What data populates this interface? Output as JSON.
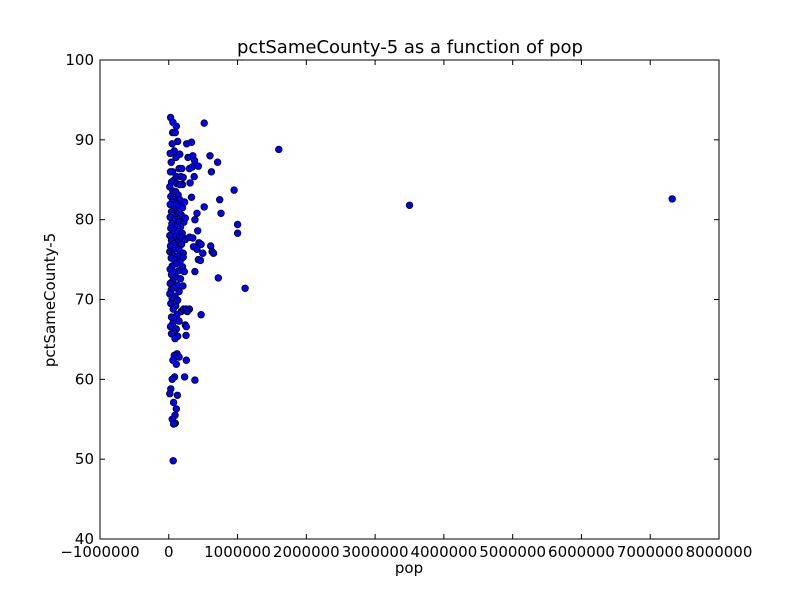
{
  "chart_data": {
    "type": "scatter",
    "title": "pctSameCounty-5 as a function of pop",
    "xlabel": "pop",
    "ylabel": "pctSameCounty-5",
    "xlim": [
      -1000000,
      8000000
    ],
    "ylim": [
      40,
      100
    ],
    "xticks": [
      "−1000000",
      "0",
      "1000000",
      "2000000",
      "3000000",
      "4000000",
      "5000000",
      "6000000",
      "7000000",
      "8000000"
    ],
    "yticks": [
      "40",
      "50",
      "60",
      "70",
      "80",
      "90",
      "100"
    ],
    "grid": false,
    "marker_color": "#0000ff",
    "marker_edge": "#000000",
    "points": [
      [
        27000,
        92.8
      ],
      [
        60000,
        92.2
      ],
      [
        110000,
        91.7
      ],
      [
        55000,
        90.9
      ],
      [
        95000,
        90.9
      ],
      [
        130000,
        89.8
      ],
      [
        50000,
        89.5
      ],
      [
        80000,
        88.6
      ],
      [
        20000,
        88.3
      ],
      [
        160000,
        88.2
      ],
      [
        105000,
        87.8
      ],
      [
        35000,
        87.2
      ],
      [
        150000,
        86.4
      ],
      [
        190000,
        86.4
      ],
      [
        55000,
        86.0
      ],
      [
        25000,
        86.0
      ],
      [
        110000,
        85.4
      ],
      [
        175000,
        85.4
      ],
      [
        70000,
        84.9
      ],
      [
        40000,
        84.7
      ],
      [
        120000,
        84.5
      ],
      [
        200000,
        84.4
      ],
      [
        160000,
        84.4
      ],
      [
        15000,
        84.1
      ],
      [
        60000,
        83.6
      ],
      [
        100000,
        83.5
      ],
      [
        135000,
        83.1
      ],
      [
        30000,
        82.9
      ],
      [
        80000,
        82.5
      ],
      [
        160000,
        82.5
      ],
      [
        50000,
        82.2
      ],
      [
        110000,
        82.0
      ],
      [
        20000,
        81.9
      ],
      [
        140000,
        81.7
      ],
      [
        200000,
        81.5
      ],
      [
        75000,
        81.3
      ],
      [
        40000,
        81.0
      ],
      [
        125000,
        80.8
      ],
      [
        180000,
        80.6
      ],
      [
        60000,
        80.5
      ],
      [
        20000,
        80.3
      ],
      [
        95000,
        80.0
      ],
      [
        150000,
        79.8
      ],
      [
        220000,
        79.7
      ],
      [
        45000,
        79.5
      ],
      [
        115000,
        79.2
      ],
      [
        170000,
        79.1
      ],
      [
        30000,
        78.9
      ],
      [
        80000,
        78.7
      ],
      [
        135000,
        78.5
      ],
      [
        195000,
        78.3
      ],
      [
        55000,
        78.2
      ],
      [
        15000,
        78.0
      ],
      [
        100000,
        77.9
      ],
      [
        160000,
        77.8
      ],
      [
        230000,
        77.6
      ],
      [
        40000,
        77.4
      ],
      [
        120000,
        77.2
      ],
      [
        70000,
        77.0
      ],
      [
        185000,
        76.9
      ],
      [
        25000,
        76.7
      ],
      [
        95000,
        76.4
      ],
      [
        150000,
        76.2
      ],
      [
        15000,
        76.0
      ],
      [
        210000,
        75.8
      ],
      [
        60000,
        75.6
      ],
      [
        130000,
        75.4
      ],
      [
        35000,
        75.2
      ],
      [
        85000,
        75.0
      ],
      [
        165000,
        74.8
      ],
      [
        110000,
        74.5
      ],
      [
        50000,
        74.2
      ],
      [
        200000,
        74.1
      ],
      [
        20000,
        73.8
      ],
      [
        140000,
        73.6
      ],
      [
        75000,
        73.4
      ],
      [
        40000,
        73.1
      ],
      [
        100000,
        72.8
      ],
      [
        170000,
        72.6
      ],
      [
        55000,
        72.3
      ],
      [
        20000,
        72.0
      ],
      [
        120000,
        71.8
      ],
      [
        80000,
        71.5
      ],
      [
        35000,
        71.2
      ],
      [
        150000,
        71.0
      ],
      [
        15000,
        70.7
      ],
      [
        90000,
        70.4
      ],
      [
        50000,
        70.1
      ],
      [
        130000,
        69.9
      ],
      [
        30000,
        69.5
      ],
      [
        100000,
        69.2
      ],
      [
        65000,
        68.8
      ],
      [
        180000,
        68.5
      ],
      [
        120000,
        68.1
      ],
      [
        40000,
        67.8
      ],
      [
        85000,
        67.6
      ],
      [
        150000,
        67.3
      ],
      [
        60000,
        67.0
      ],
      [
        25000,
        66.6
      ],
      [
        110000,
        66.3
      ],
      [
        70000,
        65.9
      ],
      [
        40000,
        65.7
      ],
      [
        130000,
        65.4
      ],
      [
        90000,
        65.1
      ],
      [
        120000,
        63.2
      ],
      [
        80000,
        63.0
      ],
      [
        150000,
        62.8
      ],
      [
        60000,
        62.4
      ],
      [
        110000,
        61.9
      ],
      [
        85000,
        60.3
      ],
      [
        50000,
        60.0
      ],
      [
        30000,
        58.8
      ],
      [
        15000,
        58.2
      ],
      [
        125000,
        58.0
      ],
      [
        70000,
        57.1
      ],
      [
        110000,
        56.3
      ],
      [
        90000,
        55.5
      ],
      [
        50000,
        55.0
      ],
      [
        95000,
        54.5
      ],
      [
        70000,
        54.4
      ],
      [
        65000,
        49.8
      ],
      [
        210000,
        85.3
      ],
      [
        230000,
        82.2
      ],
      [
        240000,
        80.2
      ],
      [
        200000,
        77.8
      ],
      [
        240000,
        77.5
      ],
      [
        210000,
        75.3
      ],
      [
        225000,
        73.5
      ],
      [
        205000,
        71.7
      ],
      [
        215000,
        68.8
      ],
      [
        250000,
        68.8
      ],
      [
        240000,
        66.8
      ],
      [
        255000,
        66.6
      ],
      [
        250000,
        65.5
      ],
      [
        255000,
        62.4
      ],
      [
        230000,
        60.3
      ],
      [
        260000,
        89.5
      ],
      [
        280000,
        87.8
      ],
      [
        300000,
        86.4
      ],
      [
        340000,
        86.6
      ],
      [
        310000,
        84.6
      ],
      [
        330000,
        82.8
      ],
      [
        380000,
        80.0
      ],
      [
        410000,
        80.8
      ],
      [
        300000,
        77.8
      ],
      [
        350000,
        77.7
      ],
      [
        360000,
        76.6
      ],
      [
        410000,
        76.3
      ],
      [
        430000,
        75.0
      ],
      [
        380000,
        73.5
      ],
      [
        300000,
        68.8
      ],
      [
        270000,
        68.5
      ],
      [
        380000,
        59.9
      ],
      [
        330000,
        89.7
      ],
      [
        350000,
        88.0
      ],
      [
        375000,
        87.4
      ],
      [
        430000,
        86.7
      ],
      [
        370000,
        85.4
      ],
      [
        420000,
        78.6
      ],
      [
        440000,
        77.1
      ],
      [
        470000,
        76.9
      ],
      [
        460000,
        74.9
      ],
      [
        495000,
        75.8
      ],
      [
        470000,
        68.1
      ],
      [
        515000,
        92.1
      ],
      [
        515000,
        81.6
      ],
      [
        600000,
        88.0
      ],
      [
        610000,
        76.7
      ],
      [
        630000,
        76.0
      ],
      [
        650000,
        75.8
      ],
      [
        620000,
        86.0
      ],
      [
        710000,
        87.2
      ],
      [
        720000,
        72.7
      ],
      [
        740000,
        82.5
      ],
      [
        760000,
        80.8
      ],
      [
        950000,
        83.7
      ],
      [
        1000000,
        79.4
      ],
      [
        1000000,
        78.3
      ],
      [
        1110000,
        71.4
      ],
      [
        1600000,
        88.8
      ],
      [
        3500000,
        81.8
      ],
      [
        7320000,
        82.6
      ]
    ]
  }
}
